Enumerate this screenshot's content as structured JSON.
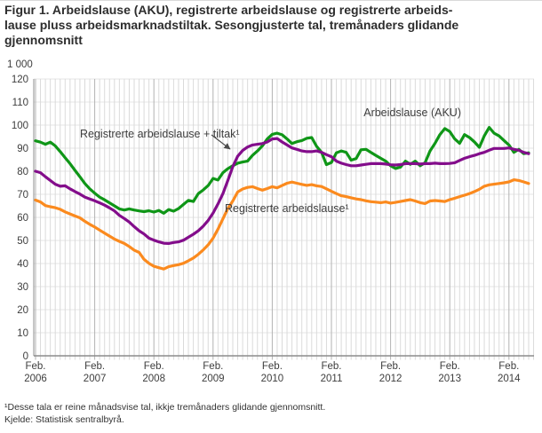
{
  "title_lines": [
    "Figur 1. Arbeidslause (AKU), registrerte arbeidslause og registrerte arbeids-",
    "lause pluss arbeidsmarknadstiltak. Sesongjusterte tal, tremånaders glidande",
    "gjennomsnitt"
  ],
  "footnotes": {
    "note1": "¹Desse tala er reine månadsvise tal, ikkje tremånaders glidande gjennomsnitt.",
    "source": "Kjelde: Statistisk sentralbyrå."
  },
  "chart_data": {
    "type": "line",
    "unit_label": "1 000",
    "ylim": [
      0,
      120
    ],
    "y_tick_step": 10,
    "y_ticks": [
      0,
      10,
      20,
      30,
      40,
      50,
      60,
      70,
      80,
      90,
      100,
      110,
      120
    ],
    "grid": true,
    "x_start_month": "Feb 2006",
    "x_end_month": "Jun 2014",
    "x_ticks": [
      {
        "m": "Feb.",
        "y": "2006"
      },
      {
        "m": "Feb.",
        "y": "2007"
      },
      {
        "m": "Feb.",
        "y": "2008"
      },
      {
        "m": "Feb.",
        "y": "2009"
      },
      {
        "m": "Feb.",
        "y": "2010"
      },
      {
        "m": "Feb.",
        "y": "2011"
      },
      {
        "m": "Feb.",
        "y": "2012"
      },
      {
        "m": "Feb.",
        "y": "2013"
      },
      {
        "m": "Feb.",
        "y": "2014"
      }
    ],
    "series": [
      {
        "key": "aku",
        "name": "Arbeidslause (AKU)",
        "color": "#0f9617",
        "values": [
          93.2,
          92.6,
          91.7,
          92.6,
          91.0,
          88.5,
          85.9,
          83.3,
          80.4,
          77.6,
          74.7,
          72.4,
          70.5,
          68.8,
          67.6,
          66.3,
          65.0,
          63.7,
          63.2,
          63.7,
          63.2,
          62.8,
          62.5,
          62.9,
          62.3,
          63.0,
          61.8,
          63.4,
          62.7,
          63.8,
          65.6,
          67.4,
          66.9,
          70.3,
          71.9,
          73.8,
          76.9,
          76.2,
          79.4,
          81.1,
          82.4,
          83.5,
          84.0,
          84.4,
          86.9,
          88.8,
          91.0,
          94.0,
          96.0,
          96.5,
          95.8,
          94.0,
          92.0,
          92.8,
          93.3,
          94.3,
          94.6,
          90.8,
          88.2,
          82.9,
          83.8,
          88.0,
          88.8,
          88.2,
          84.8,
          85.5,
          89.3,
          89.5,
          88.2,
          86.9,
          85.6,
          84.4,
          82.4,
          81.2,
          81.8,
          84.4,
          83.0,
          84.4,
          82.4,
          83.7,
          88.8,
          92.1,
          95.9,
          98.5,
          97.2,
          94.0,
          92.1,
          95.9,
          94.6,
          92.7,
          90.4,
          95.3,
          99.0,
          96.5,
          95.3,
          93.3,
          91.4,
          88.2,
          89.5,
          87.6,
          88.0
        ]
      },
      {
        "key": "reg-tiltak",
        "name": "Registrerte arbeidslause + tiltak¹",
        "color": "#830d8b",
        "values": [
          80.0,
          79.4,
          77.6,
          76.0,
          74.4,
          73.5,
          73.7,
          72.4,
          71.2,
          70.1,
          68.8,
          68.0,
          67.2,
          66.3,
          65.3,
          64.1,
          62.8,
          60.9,
          59.5,
          58.0,
          56.0,
          54.2,
          52.8,
          51.0,
          50.1,
          49.4,
          48.8,
          48.7,
          49.1,
          49.4,
          50.1,
          51.4,
          52.7,
          54.2,
          56.2,
          58.7,
          61.9,
          65.8,
          70.3,
          76.0,
          82.0,
          86.5,
          89.0,
          90.5,
          91.4,
          91.7,
          92.0,
          92.7,
          94.0,
          94.2,
          92.7,
          91.4,
          90.1,
          89.5,
          88.8,
          88.5,
          88.5,
          88.8,
          88.2,
          87.2,
          86.3,
          84.4,
          83.5,
          82.9,
          82.4,
          82.4,
          82.7,
          83.0,
          83.3,
          83.3,
          83.3,
          83.1,
          82.8,
          82.7,
          82.9,
          83.3,
          83.3,
          83.3,
          83.1,
          83.3,
          83.3,
          83.5,
          83.3,
          83.3,
          83.4,
          83.7,
          84.7,
          85.6,
          86.3,
          86.9,
          87.6,
          88.2,
          89.1,
          89.9,
          89.9,
          89.9,
          90.1,
          89.5,
          89.1,
          88.2,
          87.6
        ]
      },
      {
        "key": "reg",
        "name": "Registrerte arbeidslause¹",
        "color": "#fb8a1e",
        "values": [
          67.5,
          66.7,
          65.1,
          64.6,
          64.2,
          63.5,
          62.4,
          61.5,
          60.6,
          59.8,
          58.3,
          57.0,
          55.8,
          54.5,
          53.2,
          51.9,
          50.6,
          49.6,
          48.7,
          47.4,
          45.8,
          44.8,
          41.8,
          40.1,
          38.8,
          38.2,
          37.6,
          38.6,
          39.1,
          39.5,
          40.1,
          41.2,
          42.4,
          44.0,
          45.9,
          48.1,
          51.0,
          54.9,
          59.4,
          63.8,
          67.1,
          71.0,
          72.3,
          73.0,
          73.3,
          72.5,
          71.8,
          72.5,
          73.3,
          72.8,
          73.8,
          74.8,
          75.3,
          74.8,
          74.3,
          73.9,
          74.2,
          73.7,
          73.4,
          72.4,
          71.3,
          70.3,
          69.4,
          69.0,
          68.5,
          68.0,
          67.7,
          67.2,
          66.8,
          66.6,
          66.4,
          66.7,
          66.2,
          66.5,
          66.9,
          67.3,
          67.7,
          67.1,
          66.4,
          66.0,
          67.1,
          67.3,
          67.1,
          66.9,
          67.7,
          68.3,
          69.0,
          69.6,
          70.3,
          71.2,
          72.2,
          73.5,
          74.1,
          74.4,
          74.7,
          75.0,
          75.4,
          76.3,
          76.0,
          75.4,
          74.7
        ]
      }
    ],
    "legend_position": "inline-labels"
  }
}
